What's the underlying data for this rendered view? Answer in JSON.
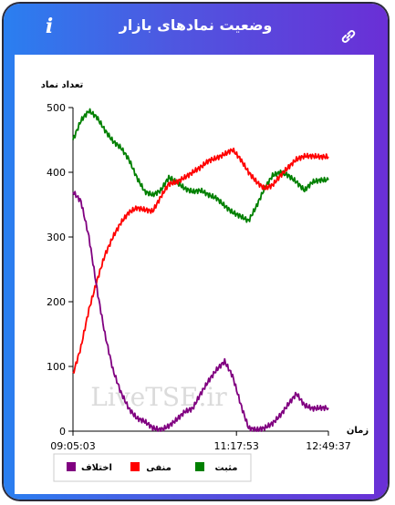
{
  "header": {
    "title": "وضعیت نمادهای بازار",
    "info_icon": "info-icon",
    "link_icon": "link-icon"
  },
  "colors": {
    "positive": "#008000",
    "negative": "#ff0000",
    "difference": "#800080",
    "gradient_start": "#2a7ff0",
    "gradient_end": "#6a2fd6"
  },
  "chart_data": {
    "type": "line",
    "ylabel": "تعداد نماد",
    "xlabel": "زمان",
    "ylim": [
      0,
      500
    ],
    "yticks": [
      0,
      100,
      200,
      300,
      400,
      500
    ],
    "xticks": [
      "09:05:03",
      "11:17:53",
      "12:49:37"
    ],
    "watermark": "LiveTSE.ir",
    "grid": false,
    "legend_position": "bottom",
    "series": [
      {
        "name": "مثبت",
        "color": "#008000",
        "values": [
          450,
          480,
          495,
          485,
          465,
          448,
          438,
          420,
          392,
          370,
          365,
          372,
          392,
          385,
          375,
          370,
          372,
          365,
          360,
          348,
          338,
          332,
          325,
          348,
          375,
          395,
          400,
          395,
          385,
          372,
          385,
          388,
          388
        ]
      },
      {
        "name": "منفی",
        "color": "#ff0000",
        "values": [
          88,
          130,
          188,
          232,
          272,
          300,
          322,
          338,
          345,
          342,
          340,
          362,
          382,
          385,
          392,
          400,
          408,
          418,
          422,
          428,
          435,
          420,
          400,
          385,
          375,
          380,
          395,
          408,
          420,
          425,
          425,
          424,
          424
        ]
      },
      {
        "name": "اختلاف",
        "color": "#800080",
        "values": [
          370,
          355,
          300,
          220,
          150,
          95,
          60,
          35,
          20,
          15,
          5,
          2,
          8,
          18,
          30,
          35,
          58,
          78,
          95,
          108,
          85,
          42,
          5,
          2,
          5,
          12,
          25,
          42,
          58,
          40,
          35,
          36,
          36
        ]
      }
    ]
  }
}
